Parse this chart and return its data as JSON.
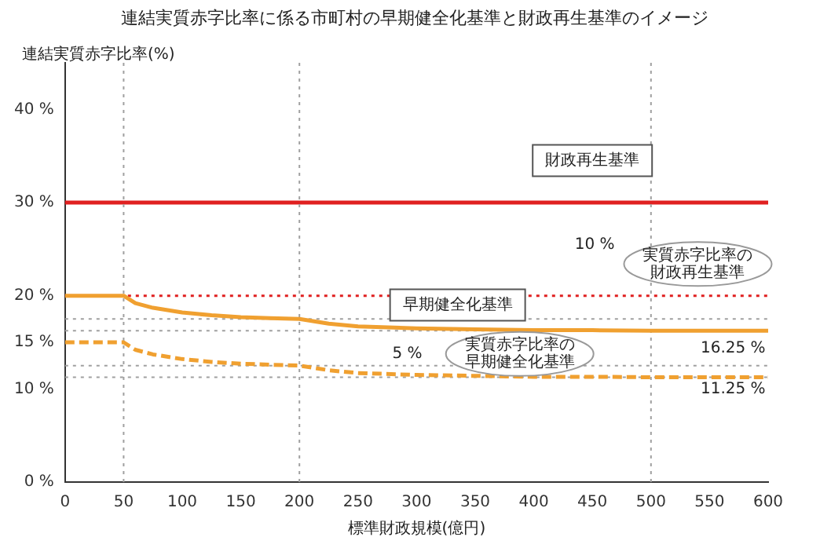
{
  "chart_data": {
    "type": "line",
    "title": "連結実質赤字比率に係る市町村の早期健全化基準と財政再生基準のイメージ",
    "ylabel": "連結実質赤字比率(%)",
    "xlabel": "標準財政規模(億円)",
    "x": [
      0,
      50,
      60,
      75,
      100,
      125,
      150,
      175,
      200,
      225,
      250,
      300,
      350,
      400,
      450,
      500,
      600
    ],
    "series": [
      {
        "color": "#f0a030",
        "line_style": "solid",
        "values": [
          20,
          20,
          19.2,
          18.7,
          18.2,
          17.9,
          17.7,
          17.6,
          17.5,
          17.0,
          16.7,
          16.5,
          16.4,
          16.3,
          16.3,
          16.25,
          16.25
        ]
      },
      {
        "color": "#f0a030",
        "line_style": "dashed",
        "values": [
          15,
          15,
          14.2,
          13.7,
          13.2,
          12.9,
          12.7,
          12.6,
          12.5,
          12.0,
          11.7,
          11.5,
          11.4,
          11.3,
          11.3,
          11.25,
          11.25
        ]
      }
    ],
    "xlim": [
      0,
      600
    ],
    "xticks": [
      0,
      50,
      100,
      150,
      200,
      250,
      300,
      350,
      400,
      450,
      500,
      550,
      600
    ],
    "ylim": [
      0,
      45
    ],
    "yticks": [
      {
        "value": 0,
        "label": "0 %"
      },
      {
        "value": 10,
        "label": "10 %"
      },
      {
        "value": 15,
        "label": "15 %"
      },
      {
        "value": 20,
        "label": "20 %"
      },
      {
        "value": 30,
        "label": "30 %"
      },
      {
        "value": 40,
        "label": "40 %"
      }
    ],
    "ref_lines": [
      {
        "axis": "y",
        "value": 30,
        "color": "#e02020",
        "line_style": "solid"
      },
      {
        "axis": "y",
        "value": 20,
        "color": "#e02020",
        "line_style": "dotted"
      },
      {
        "axis": "y",
        "value": 17.5,
        "color": "#a0a0a0",
        "line_style": "dotted"
      },
      {
        "axis": "y",
        "value": 16.25,
        "color": "#a0a0a0",
        "line_style": "dotted"
      },
      {
        "axis": "y",
        "value": 12.5,
        "color": "#a0a0a0",
        "line_style": "dotted"
      },
      {
        "axis": "y",
        "value": 11.25,
        "color": "#a0a0a0",
        "line_style": "dotted"
      },
      {
        "axis": "x",
        "value": 50,
        "color": "#a0a0a0",
        "line_style": "dotted"
      },
      {
        "axis": "x",
        "value": 200,
        "color": "#a0a0a0",
        "line_style": "dotted"
      },
      {
        "axis": "x",
        "value": 500,
        "color": "#a0a0a0",
        "line_style": "dotted"
      }
    ],
    "annotations": [
      "財政再生基準",
      "10 %",
      "実質赤字比率の財政再生基準",
      "早期健全化基準",
      "5 %",
      "実質赤字比率の早期健全化基準",
      "16.25 %",
      "11.25 %"
    ],
    "grid": false,
    "legend": false,
    "marker": "none"
  }
}
